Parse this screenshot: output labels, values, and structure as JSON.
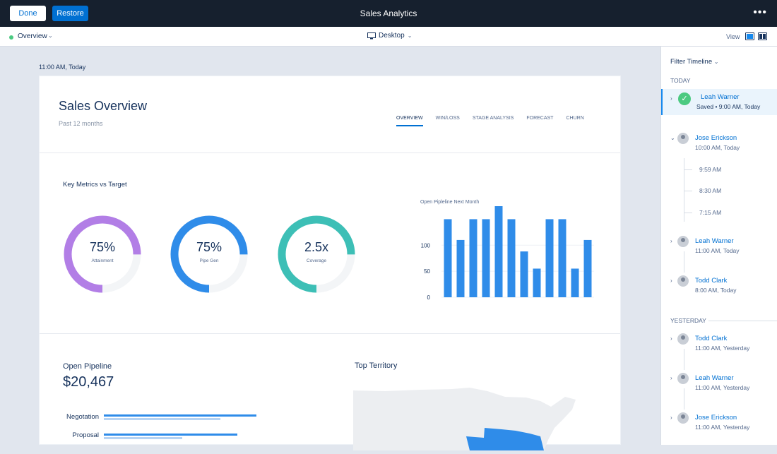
{
  "header": {
    "done_label": "Done",
    "restore_label": "Restore",
    "title": "Sales Analytics",
    "more_label": "•••"
  },
  "subbar": {
    "page": "Overview",
    "device": "Desktop",
    "view_label": "View"
  },
  "canvas": {
    "timestamp": "11:00 AM, Today"
  },
  "dashboard": {
    "title": "Sales Overview",
    "subtitle": "Past 12 months",
    "tabs": [
      "OVERVIEW",
      "WIN/LOSS",
      "STAGE ANALYSIS",
      "FORECAST",
      "CHURN"
    ],
    "key_metrics_title": "Key Metrics vs Target",
    "metrics": [
      {
        "value": "75%",
        "label": "Attainment",
        "fraction": 0.75,
        "color": "#b27ee6"
      },
      {
        "value": "75%",
        "label": "Pipe Gen",
        "fraction": 0.75,
        "color": "#2f8ce9"
      },
      {
        "value": "2.5x",
        "label": "Coverage",
        "fraction": 0.75,
        "color": "#3dbfb6"
      }
    ],
    "open_pipeline_title": "Open Pipeline",
    "open_pipeline_value": "$20,467",
    "pipeline_stages": [
      {
        "label": "Negotation",
        "primary": 0.72,
        "secondary": 0.55
      },
      {
        "label": "Proposal",
        "primary": 0.63,
        "secondary": 0.37
      }
    ],
    "top_territory_title": "Top Territory"
  },
  "chart_data": {
    "type": "bar",
    "title": "Open Pipleline Next Month",
    "yticks": [
      0,
      50,
      100
    ],
    "ylim": [
      0,
      175
    ],
    "values": [
      150,
      110,
      150,
      150,
      175,
      150,
      88,
      55,
      150,
      150,
      55,
      110
    ],
    "color": "#2f8ce9"
  },
  "timeline": {
    "filter_label": "Filter Timeline",
    "today_label": "TODAY",
    "yesterday_label": "YESTERDAY",
    "items": [
      {
        "name": "Leah Warner",
        "time": "Saved • 9:00 AM, Today"
      },
      {
        "name": "Jose Erickson",
        "time": "10:00 AM, Today",
        "subtimes": [
          "9:59 AM",
          "8:30 AM",
          "7:15 AM"
        ]
      },
      {
        "name": "Leah Warner",
        "time": "11:00 AM, Today"
      },
      {
        "name": "Todd Clark",
        "time": "8:00 AM, Today"
      },
      {
        "name": "Todd Clark",
        "time": "11:00 AM, Yesterday"
      },
      {
        "name": "Leah Warner",
        "time": "11:00 AM, Yesterday"
      },
      {
        "name": "Jose Erickson",
        "time": "11:00 AM, Yesterday"
      }
    ]
  }
}
